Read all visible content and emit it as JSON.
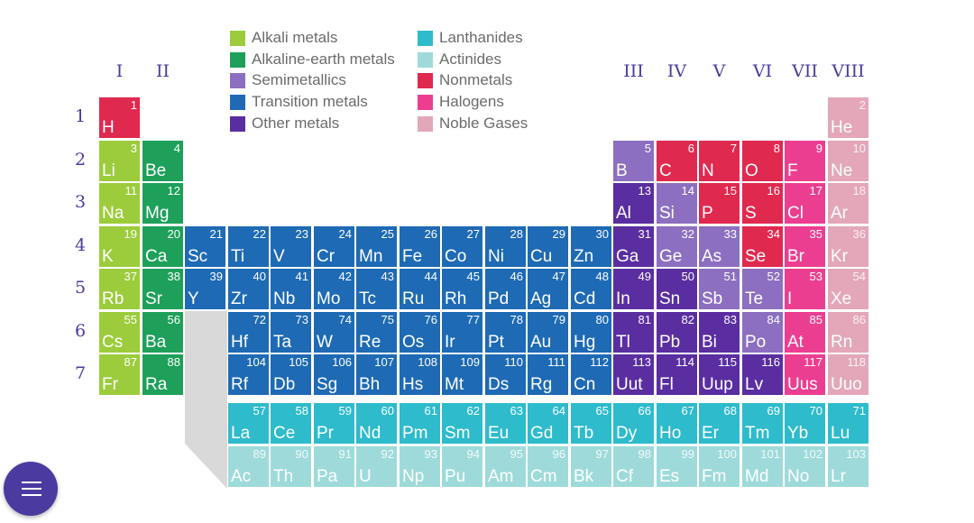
{
  "colors": {
    "alkali": "#9ccc3c",
    "alkaline_earth": "#1ea05a",
    "semimetal": "#8c6fc0",
    "transition": "#1e6ab4",
    "other_metal": "#5a2ea0",
    "lanthanide": "#2ebbcc",
    "actinide": "#9fdada",
    "nonmetal": "#e0294f",
    "halogen": "#ec3e91",
    "noble": "#e3a7b9",
    "label": "#4a3a9c",
    "fab": "#4b3aa0"
  },
  "legend": [
    {
      "label": "Alkali metals",
      "category": "alkali"
    },
    {
      "label": "Alkaline-earth metals",
      "category": "alkaline_earth"
    },
    {
      "label": "Semimetallics",
      "category": "semimetal"
    },
    {
      "label": "Transition metals",
      "category": "transition"
    },
    {
      "label": "Other metals",
      "category": "other_metal"
    },
    {
      "label": "Lanthanides",
      "category": "lanthanide"
    },
    {
      "label": "Actinides",
      "category": "actinide"
    },
    {
      "label": "Nonmetals",
      "category": "nonmetal"
    },
    {
      "label": "Halogens",
      "category": "halogen"
    },
    {
      "label": "Noble Gases",
      "category": "noble"
    }
  ],
  "group_labels": [
    {
      "text": "I",
      "group": 1
    },
    {
      "text": "II",
      "group": 2
    },
    {
      "text": "III",
      "group": 13
    },
    {
      "text": "IV",
      "group": 14
    },
    {
      "text": "V",
      "group": 15
    },
    {
      "text": "VI",
      "group": 16
    },
    {
      "text": "VII",
      "group": 17
    },
    {
      "text": "VIII",
      "group": 18
    }
  ],
  "period_labels": [
    "1",
    "2",
    "3",
    "4",
    "5",
    "6",
    "7"
  ],
  "elements": [
    {
      "num": 1,
      "sym": "H",
      "row": 1,
      "col": 1,
      "cat": "nonmetal"
    },
    {
      "num": 2,
      "sym": "He",
      "row": 1,
      "col": 18,
      "cat": "noble"
    },
    {
      "num": 3,
      "sym": "Li",
      "row": 2,
      "col": 1,
      "cat": "alkali"
    },
    {
      "num": 4,
      "sym": "Be",
      "row": 2,
      "col": 2,
      "cat": "alkaline_earth"
    },
    {
      "num": 5,
      "sym": "B",
      "row": 2,
      "col": 13,
      "cat": "semimetal"
    },
    {
      "num": 6,
      "sym": "C",
      "row": 2,
      "col": 14,
      "cat": "nonmetal"
    },
    {
      "num": 7,
      "sym": "N",
      "row": 2,
      "col": 15,
      "cat": "nonmetal"
    },
    {
      "num": 8,
      "sym": "O",
      "row": 2,
      "col": 16,
      "cat": "nonmetal"
    },
    {
      "num": 9,
      "sym": "F",
      "row": 2,
      "col": 17,
      "cat": "halogen"
    },
    {
      "num": 10,
      "sym": "Ne",
      "row": 2,
      "col": 18,
      "cat": "noble"
    },
    {
      "num": 11,
      "sym": "Na",
      "row": 3,
      "col": 1,
      "cat": "alkali"
    },
    {
      "num": 12,
      "sym": "Mg",
      "row": 3,
      "col": 2,
      "cat": "alkaline_earth"
    },
    {
      "num": 13,
      "sym": "Al",
      "row": 3,
      "col": 13,
      "cat": "other_metal"
    },
    {
      "num": 14,
      "sym": "Si",
      "row": 3,
      "col": 14,
      "cat": "semimetal"
    },
    {
      "num": 15,
      "sym": "P",
      "row": 3,
      "col": 15,
      "cat": "nonmetal"
    },
    {
      "num": 16,
      "sym": "S",
      "row": 3,
      "col": 16,
      "cat": "nonmetal"
    },
    {
      "num": 17,
      "sym": "Cl",
      "row": 3,
      "col": 17,
      "cat": "halogen"
    },
    {
      "num": 18,
      "sym": "Ar",
      "row": 3,
      "col": 18,
      "cat": "noble"
    },
    {
      "num": 19,
      "sym": "K",
      "row": 4,
      "col": 1,
      "cat": "alkali"
    },
    {
      "num": 20,
      "sym": "Ca",
      "row": 4,
      "col": 2,
      "cat": "alkaline_earth"
    },
    {
      "num": 21,
      "sym": "Sc",
      "row": 4,
      "col": 3,
      "cat": "transition"
    },
    {
      "num": 22,
      "sym": "Ti",
      "row": 4,
      "col": 4,
      "cat": "transition"
    },
    {
      "num": 23,
      "sym": "V",
      "row": 4,
      "col": 5,
      "cat": "transition"
    },
    {
      "num": 24,
      "sym": "Cr",
      "row": 4,
      "col": 6,
      "cat": "transition"
    },
    {
      "num": 25,
      "sym": "Mn",
      "row": 4,
      "col": 7,
      "cat": "transition"
    },
    {
      "num": 26,
      "sym": "Fe",
      "row": 4,
      "col": 8,
      "cat": "transition"
    },
    {
      "num": 27,
      "sym": "Co",
      "row": 4,
      "col": 9,
      "cat": "transition"
    },
    {
      "num": 28,
      "sym": "Ni",
      "row": 4,
      "col": 10,
      "cat": "transition"
    },
    {
      "num": 29,
      "sym": "Cu",
      "row": 4,
      "col": 11,
      "cat": "transition"
    },
    {
      "num": 30,
      "sym": "Zn",
      "row": 4,
      "col": 12,
      "cat": "transition"
    },
    {
      "num": 31,
      "sym": "Ga",
      "row": 4,
      "col": 13,
      "cat": "other_metal"
    },
    {
      "num": 32,
      "sym": "Ge",
      "row": 4,
      "col": 14,
      "cat": "semimetal"
    },
    {
      "num": 33,
      "sym": "As",
      "row": 4,
      "col": 15,
      "cat": "semimetal"
    },
    {
      "num": 34,
      "sym": "Se",
      "row": 4,
      "col": 16,
      "cat": "nonmetal"
    },
    {
      "num": 35,
      "sym": "Br",
      "row": 4,
      "col": 17,
      "cat": "halogen"
    },
    {
      "num": 36,
      "sym": "Kr",
      "row": 4,
      "col": 18,
      "cat": "noble"
    },
    {
      "num": 37,
      "sym": "Rb",
      "row": 5,
      "col": 1,
      "cat": "alkali"
    },
    {
      "num": 38,
      "sym": "Sr",
      "row": 5,
      "col": 2,
      "cat": "alkaline_earth"
    },
    {
      "num": 39,
      "sym": "Y",
      "row": 5,
      "col": 3,
      "cat": "transition"
    },
    {
      "num": 40,
      "sym": "Zr",
      "row": 5,
      "col": 4,
      "cat": "transition"
    },
    {
      "num": 41,
      "sym": "Nb",
      "row": 5,
      "col": 5,
      "cat": "transition"
    },
    {
      "num": 42,
      "sym": "Mo",
      "row": 5,
      "col": 6,
      "cat": "transition"
    },
    {
      "num": 43,
      "sym": "Tc",
      "row": 5,
      "col": 7,
      "cat": "transition"
    },
    {
      "num": 44,
      "sym": "Ru",
      "row": 5,
      "col": 8,
      "cat": "transition"
    },
    {
      "num": 45,
      "sym": "Rh",
      "row": 5,
      "col": 9,
      "cat": "transition"
    },
    {
      "num": 46,
      "sym": "Pd",
      "row": 5,
      "col": 10,
      "cat": "transition"
    },
    {
      "num": 47,
      "sym": "Ag",
      "row": 5,
      "col": 11,
      "cat": "transition"
    },
    {
      "num": 48,
      "sym": "Cd",
      "row": 5,
      "col": 12,
      "cat": "transition"
    },
    {
      "num": 49,
      "sym": "In",
      "row": 5,
      "col": 13,
      "cat": "other_metal"
    },
    {
      "num": 50,
      "sym": "Sn",
      "row": 5,
      "col": 14,
      "cat": "other_metal"
    },
    {
      "num": 51,
      "sym": "Sb",
      "row": 5,
      "col": 15,
      "cat": "semimetal"
    },
    {
      "num": 52,
      "sym": "Te",
      "row": 5,
      "col": 16,
      "cat": "semimetal"
    },
    {
      "num": 53,
      "sym": "I",
      "row": 5,
      "col": 17,
      "cat": "halogen"
    },
    {
      "num": 54,
      "sym": "Xe",
      "row": 5,
      "col": 18,
      "cat": "noble"
    },
    {
      "num": 55,
      "sym": "Cs",
      "row": 6,
      "col": 1,
      "cat": "alkali"
    },
    {
      "num": 56,
      "sym": "Ba",
      "row": 6,
      "col": 2,
      "cat": "alkaline_earth"
    },
    {
      "num": 72,
      "sym": "Hf",
      "row": 6,
      "col": 4,
      "cat": "transition"
    },
    {
      "num": 73,
      "sym": "Ta",
      "row": 6,
      "col": 5,
      "cat": "transition"
    },
    {
      "num": 74,
      "sym": "W",
      "row": 6,
      "col": 6,
      "cat": "transition"
    },
    {
      "num": 75,
      "sym": "Re",
      "row": 6,
      "col": 7,
      "cat": "transition"
    },
    {
      "num": 76,
      "sym": "Os",
      "row": 6,
      "col": 8,
      "cat": "transition"
    },
    {
      "num": 77,
      "sym": "Ir",
      "row": 6,
      "col": 9,
      "cat": "transition"
    },
    {
      "num": 78,
      "sym": "Pt",
      "row": 6,
      "col": 10,
      "cat": "transition"
    },
    {
      "num": 79,
      "sym": "Au",
      "row": 6,
      "col": 11,
      "cat": "transition"
    },
    {
      "num": 80,
      "sym": "Hg",
      "row": 6,
      "col": 12,
      "cat": "transition"
    },
    {
      "num": 81,
      "sym": "Tl",
      "row": 6,
      "col": 13,
      "cat": "other_metal"
    },
    {
      "num": 82,
      "sym": "Pb",
      "row": 6,
      "col": 14,
      "cat": "other_metal"
    },
    {
      "num": 83,
      "sym": "Bi",
      "row": 6,
      "col": 15,
      "cat": "other_metal"
    },
    {
      "num": 84,
      "sym": "Po",
      "row": 6,
      "col": 16,
      "cat": "semimetal"
    },
    {
      "num": 85,
      "sym": "At",
      "row": 6,
      "col": 17,
      "cat": "halogen"
    },
    {
      "num": 86,
      "sym": "Rn",
      "row": 6,
      "col": 18,
      "cat": "noble"
    },
    {
      "num": 87,
      "sym": "Fr",
      "row": 7,
      "col": 1,
      "cat": "alkali"
    },
    {
      "num": 88,
      "sym": "Ra",
      "row": 7,
      "col": 2,
      "cat": "alkaline_earth"
    },
    {
      "num": 104,
      "sym": "Rf",
      "row": 7,
      "col": 4,
      "cat": "transition"
    },
    {
      "num": 105,
      "sym": "Db",
      "row": 7,
      "col": 5,
      "cat": "transition"
    },
    {
      "num": 106,
      "sym": "Sg",
      "row": 7,
      "col": 6,
      "cat": "transition"
    },
    {
      "num": 107,
      "sym": "Bh",
      "row": 7,
      "col": 7,
      "cat": "transition"
    },
    {
      "num": 108,
      "sym": "Hs",
      "row": 7,
      "col": 8,
      "cat": "transition"
    },
    {
      "num": 109,
      "sym": "Mt",
      "row": 7,
      "col": 9,
      "cat": "transition"
    },
    {
      "num": 110,
      "sym": "Ds",
      "row": 7,
      "col": 10,
      "cat": "transition"
    },
    {
      "num": 111,
      "sym": "Rg",
      "row": 7,
      "col": 11,
      "cat": "transition"
    },
    {
      "num": 112,
      "sym": "Cn",
      "row": 7,
      "col": 12,
      "cat": "transition"
    },
    {
      "num": 113,
      "sym": "Uut",
      "row": 7,
      "col": 13,
      "cat": "other_metal"
    },
    {
      "num": 114,
      "sym": "Fl",
      "row": 7,
      "col": 14,
      "cat": "other_metal"
    },
    {
      "num": 115,
      "sym": "Uup",
      "row": 7,
      "col": 15,
      "cat": "other_metal"
    },
    {
      "num": 116,
      "sym": "Lv",
      "row": 7,
      "col": 16,
      "cat": "other_metal"
    },
    {
      "num": 117,
      "sym": "Uus",
      "row": 7,
      "col": 17,
      "cat": "halogen"
    },
    {
      "num": 118,
      "sym": "Uuo",
      "row": 7,
      "col": 18,
      "cat": "noble"
    },
    {
      "num": 57,
      "sym": "La",
      "row": 8,
      "col": 4,
      "cat": "lanthanide"
    },
    {
      "num": 58,
      "sym": "Ce",
      "row": 8,
      "col": 5,
      "cat": "lanthanide"
    },
    {
      "num": 59,
      "sym": "Pr",
      "row": 8,
      "col": 6,
      "cat": "lanthanide"
    },
    {
      "num": 60,
      "sym": "Nd",
      "row": 8,
      "col": 7,
      "cat": "lanthanide"
    },
    {
      "num": 61,
      "sym": "Pm",
      "row": 8,
      "col": 8,
      "cat": "lanthanide"
    },
    {
      "num": 62,
      "sym": "Sm",
      "row": 8,
      "col": 9,
      "cat": "lanthanide"
    },
    {
      "num": 63,
      "sym": "Eu",
      "row": 8,
      "col": 10,
      "cat": "lanthanide"
    },
    {
      "num": 64,
      "sym": "Gd",
      "row": 8,
      "col": 11,
      "cat": "lanthanide"
    },
    {
      "num": 65,
      "sym": "Tb",
      "row": 8,
      "col": 12,
      "cat": "lanthanide"
    },
    {
      "num": 66,
      "sym": "Dy",
      "row": 8,
      "col": 13,
      "cat": "lanthanide"
    },
    {
      "num": 67,
      "sym": "Ho",
      "row": 8,
      "col": 14,
      "cat": "lanthanide"
    },
    {
      "num": 68,
      "sym": "Er",
      "row": 8,
      "col": 15,
      "cat": "lanthanide"
    },
    {
      "num": 69,
      "sym": "Tm",
      "row": 8,
      "col": 16,
      "cat": "lanthanide"
    },
    {
      "num": 70,
      "sym": "Yb",
      "row": 8,
      "col": 17,
      "cat": "lanthanide"
    },
    {
      "num": 71,
      "sym": "Lu",
      "row": 8,
      "col": 18,
      "cat": "lanthanide"
    },
    {
      "num": 89,
      "sym": "Ac",
      "row": 9,
      "col": 4,
      "cat": "actinide"
    },
    {
      "num": 90,
      "sym": "Th",
      "row": 9,
      "col": 5,
      "cat": "actinide"
    },
    {
      "num": 91,
      "sym": "Pa",
      "row": 9,
      "col": 6,
      "cat": "actinide"
    },
    {
      "num": 92,
      "sym": "U",
      "row": 9,
      "col": 7,
      "cat": "actinide"
    },
    {
      "num": 93,
      "sym": "Np",
      "row": 9,
      "col": 8,
      "cat": "actinide"
    },
    {
      "num": 94,
      "sym": "Pu",
      "row": 9,
      "col": 9,
      "cat": "actinide"
    },
    {
      "num": 95,
      "sym": "Am",
      "row": 9,
      "col": 10,
      "cat": "actinide"
    },
    {
      "num": 96,
      "sym": "Cm",
      "row": 9,
      "col": 11,
      "cat": "actinide"
    },
    {
      "num": 97,
      "sym": "Bk",
      "row": 9,
      "col": 12,
      "cat": "actinide"
    },
    {
      "num": 98,
      "sym": "Cf",
      "row": 9,
      "col": 13,
      "cat": "actinide"
    },
    {
      "num": 99,
      "sym": "Es",
      "row": 9,
      "col": 14,
      "cat": "actinide"
    },
    {
      "num": 100,
      "sym": "Fm",
      "row": 9,
      "col": 15,
      "cat": "actinide"
    },
    {
      "num": 101,
      "sym": "Md",
      "row": 9,
      "col": 16,
      "cat": "actinide"
    },
    {
      "num": 102,
      "sym": "No",
      "row": 9,
      "col": 17,
      "cat": "actinide"
    },
    {
      "num": 103,
      "sym": "Lr",
      "row": 9,
      "col": 18,
      "cat": "actinide"
    }
  ],
  "menu_button": {
    "icon": "hamburger-menu-icon"
  }
}
